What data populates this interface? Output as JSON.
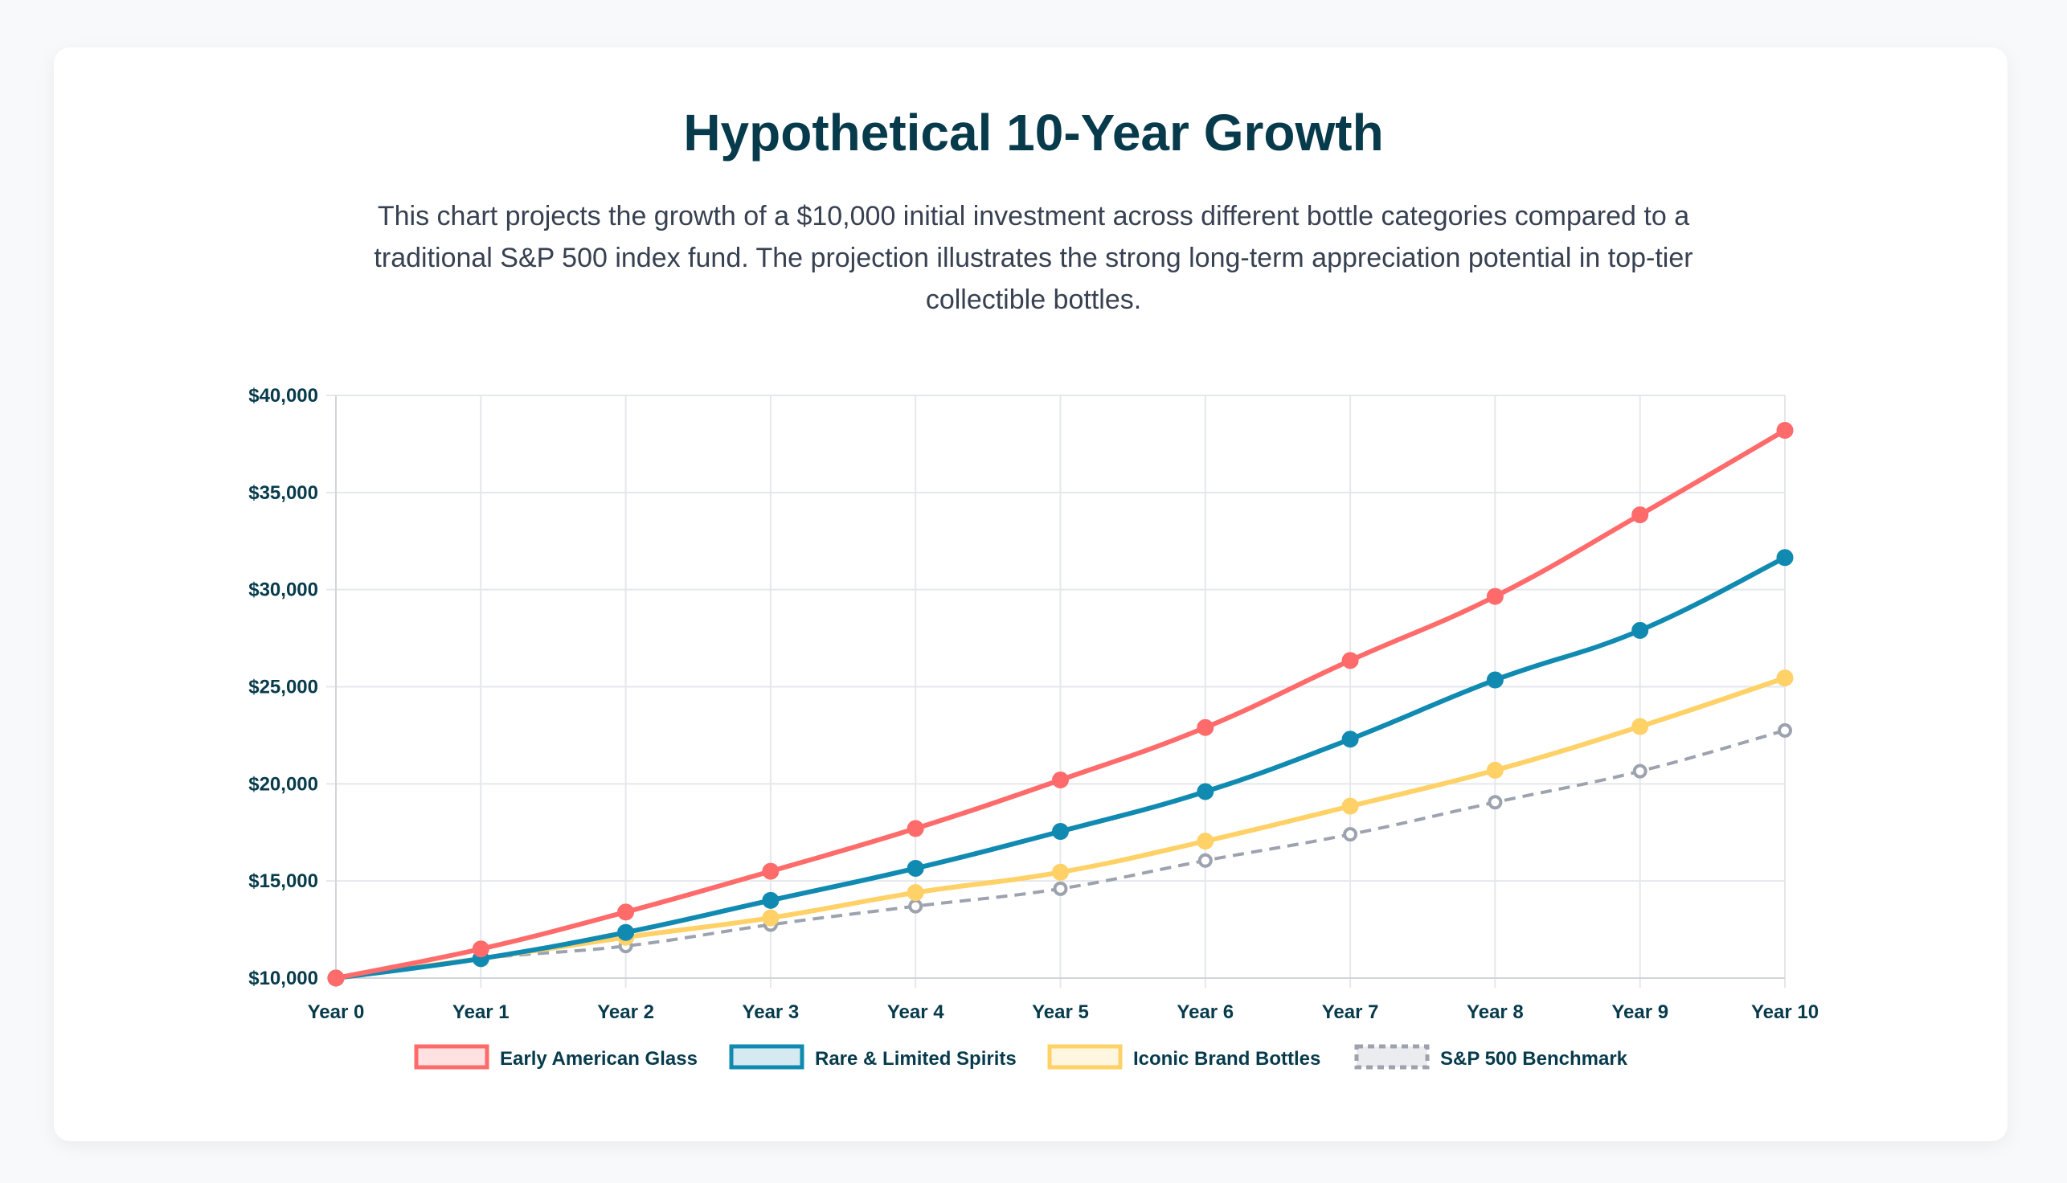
{
  "header": {
    "title": "Hypothetical 10-Year Growth",
    "description": "This chart projects the growth of a $10,000 initial investment across different bottle categories compared to a traditional S&P 500 index fund. The projection illustrates the strong long-term appreciation potential in top-tier collectible bottles."
  },
  "chart_data": {
    "type": "line",
    "title": "Hypothetical 10-Year Growth",
    "xlabel": "",
    "ylabel": "",
    "categories": [
      "Year 0",
      "Year 1",
      "Year 2",
      "Year 3",
      "Year 4",
      "Year 5",
      "Year 6",
      "Year 7",
      "Year 8",
      "Year 9",
      "Year 10"
    ],
    "ylim": [
      10000,
      40000
    ],
    "yticks": [
      10000,
      15000,
      20000,
      25000,
      30000,
      35000,
      40000
    ],
    "ytick_labels": [
      "$10,000",
      "$15,000",
      "$20,000",
      "$25,000",
      "$30,000",
      "$35,000",
      "$40,000"
    ],
    "grid": true,
    "legend_position": "bottom",
    "series": [
      {
        "name": "Early American Glass",
        "color": "#FF6B6B",
        "fill": "#FFE1E1",
        "dashed": false,
        "values": [
          10000,
          11500,
          13400,
          15500,
          17700,
          20200,
          22900,
          26350,
          29650,
          33850,
          38200
        ]
      },
      {
        "name": "Rare & Limited Spirits",
        "color": "#118AB2",
        "fill": "#D4E9F0",
        "dashed": false,
        "values": [
          10000,
          11000,
          12350,
          14000,
          15650,
          17550,
          19600,
          22300,
          25350,
          27900,
          31650
        ]
      },
      {
        "name": "Iconic Brand Bottles",
        "color": "#FFD166",
        "fill": "#FFF6E0",
        "dashed": false,
        "values": [
          10000,
          11000,
          12100,
          13100,
          14400,
          15450,
          17050,
          18850,
          20700,
          22950,
          25450
        ]
      },
      {
        "name": "S&P 500 Benchmark",
        "color": "#9CA3AF",
        "fill": "#EBECEF",
        "dashed": true,
        "values": [
          10000,
          11000,
          11650,
          12750,
          13700,
          14600,
          16050,
          17400,
          19050,
          20650,
          22750
        ]
      }
    ]
  }
}
